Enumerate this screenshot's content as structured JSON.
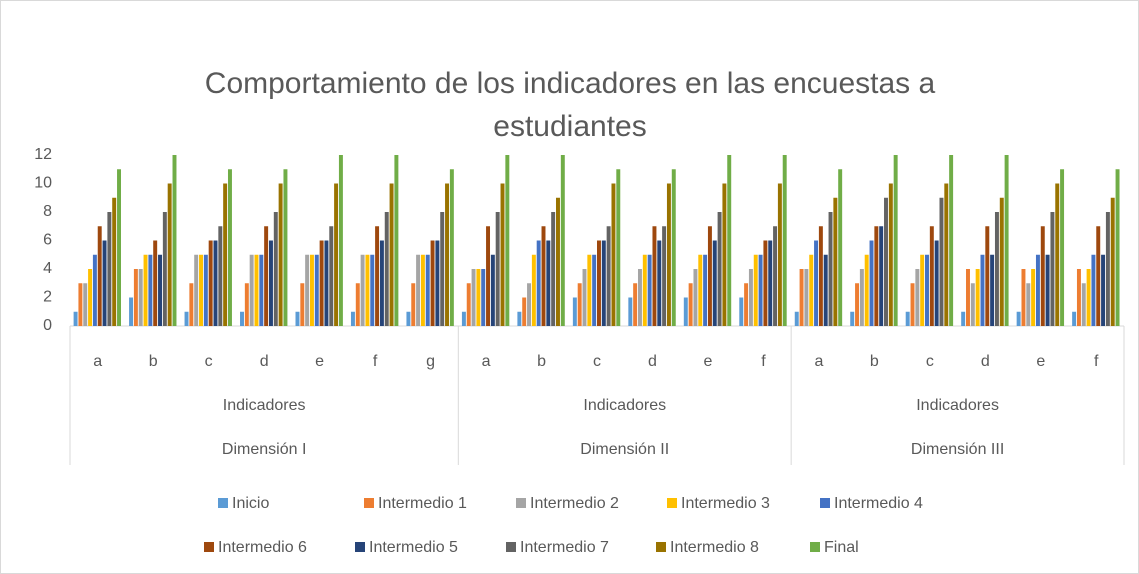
{
  "chart_data": {
    "type": "bar",
    "title": "Comportamiento de los indicadores en las encuestas a estudiantes",
    "groups": [
      {
        "dimension": "Dimensión I",
        "level": "Indicadores",
        "categories": [
          "a",
          "b",
          "c",
          "d",
          "e",
          "f",
          "g"
        ]
      },
      {
        "dimension": "Dimensión II",
        "level": "Indicadores",
        "categories": [
          "a",
          "b",
          "c",
          "d",
          "e",
          "f"
        ]
      },
      {
        "dimension": "Dimensión III",
        "level": "Indicadores",
        "categories": [
          "a",
          "b",
          "c",
          "d",
          "e",
          "f"
        ]
      }
    ],
    "ylim": [
      0,
      12
    ],
    "yticks": [
      0,
      2,
      4,
      6,
      8,
      10,
      12
    ],
    "grid": false,
    "series": [
      {
        "name": "Inicio",
        "color": "#5b9bd5",
        "values": [
          1,
          2,
          1,
          1,
          1,
          1,
          1,
          1,
          1,
          2,
          2,
          2,
          2,
          1,
          1,
          1,
          1,
          1,
          1
        ]
      },
      {
        "name": "Intermedio 1",
        "color": "#ed7d31",
        "values": [
          3,
          4,
          3,
          3,
          3,
          3,
          3,
          3,
          2,
          3,
          3,
          3,
          3,
          4,
          3,
          3,
          4,
          4,
          4
        ]
      },
      {
        "name": "Intermedio 2",
        "color": "#a5a5a5",
        "values": [
          3,
          4,
          5,
          5,
          5,
          5,
          5,
          4,
          3,
          4,
          4,
          4,
          4,
          4,
          4,
          4,
          3,
          3,
          3
        ]
      },
      {
        "name": "Intermedio 3",
        "color": "#ffc000",
        "values": [
          4,
          5,
          5,
          5,
          5,
          5,
          5,
          4,
          5,
          5,
          5,
          5,
          5,
          5,
          5,
          5,
          4,
          4,
          4
        ]
      },
      {
        "name": "Intermedio 4",
        "color": "#4472c4",
        "values": [
          5,
          5,
          5,
          5,
          5,
          5,
          5,
          4,
          6,
          5,
          5,
          5,
          5,
          6,
          6,
          5,
          5,
          5,
          5
        ]
      },
      {
        "name": "Intermedio 6",
        "color": "#9e480e",
        "values": [
          7,
          6,
          6,
          7,
          6,
          7,
          6,
          7,
          7,
          6,
          7,
          7,
          6,
          7,
          7,
          7,
          7,
          7,
          7
        ]
      },
      {
        "name": "Intermedio 5",
        "color": "#264478",
        "values": [
          6,
          5,
          6,
          6,
          6,
          6,
          6,
          5,
          6,
          6,
          6,
          6,
          6,
          5,
          7,
          6,
          5,
          5,
          5
        ]
      },
      {
        "name": "Intermedio 7",
        "color": "#636363",
        "values": [
          8,
          8,
          7,
          8,
          7,
          8,
          8,
          8,
          8,
          7,
          7,
          8,
          7,
          8,
          9,
          9,
          8,
          8,
          8
        ]
      },
      {
        "name": "Intermedio 8",
        "color": "#997300",
        "values": [
          9,
          10,
          10,
          10,
          10,
          10,
          10,
          10,
          9,
          10,
          10,
          10,
          10,
          9,
          10,
          10,
          9,
          10,
          9
        ]
      },
      {
        "name": "Final",
        "color": "#70ad47",
        "values": [
          11,
          12,
          11,
          11,
          12,
          12,
          11,
          12,
          12,
          11,
          11,
          12,
          12,
          11,
          12,
          12,
          12,
          11,
          11
        ]
      }
    ]
  }
}
